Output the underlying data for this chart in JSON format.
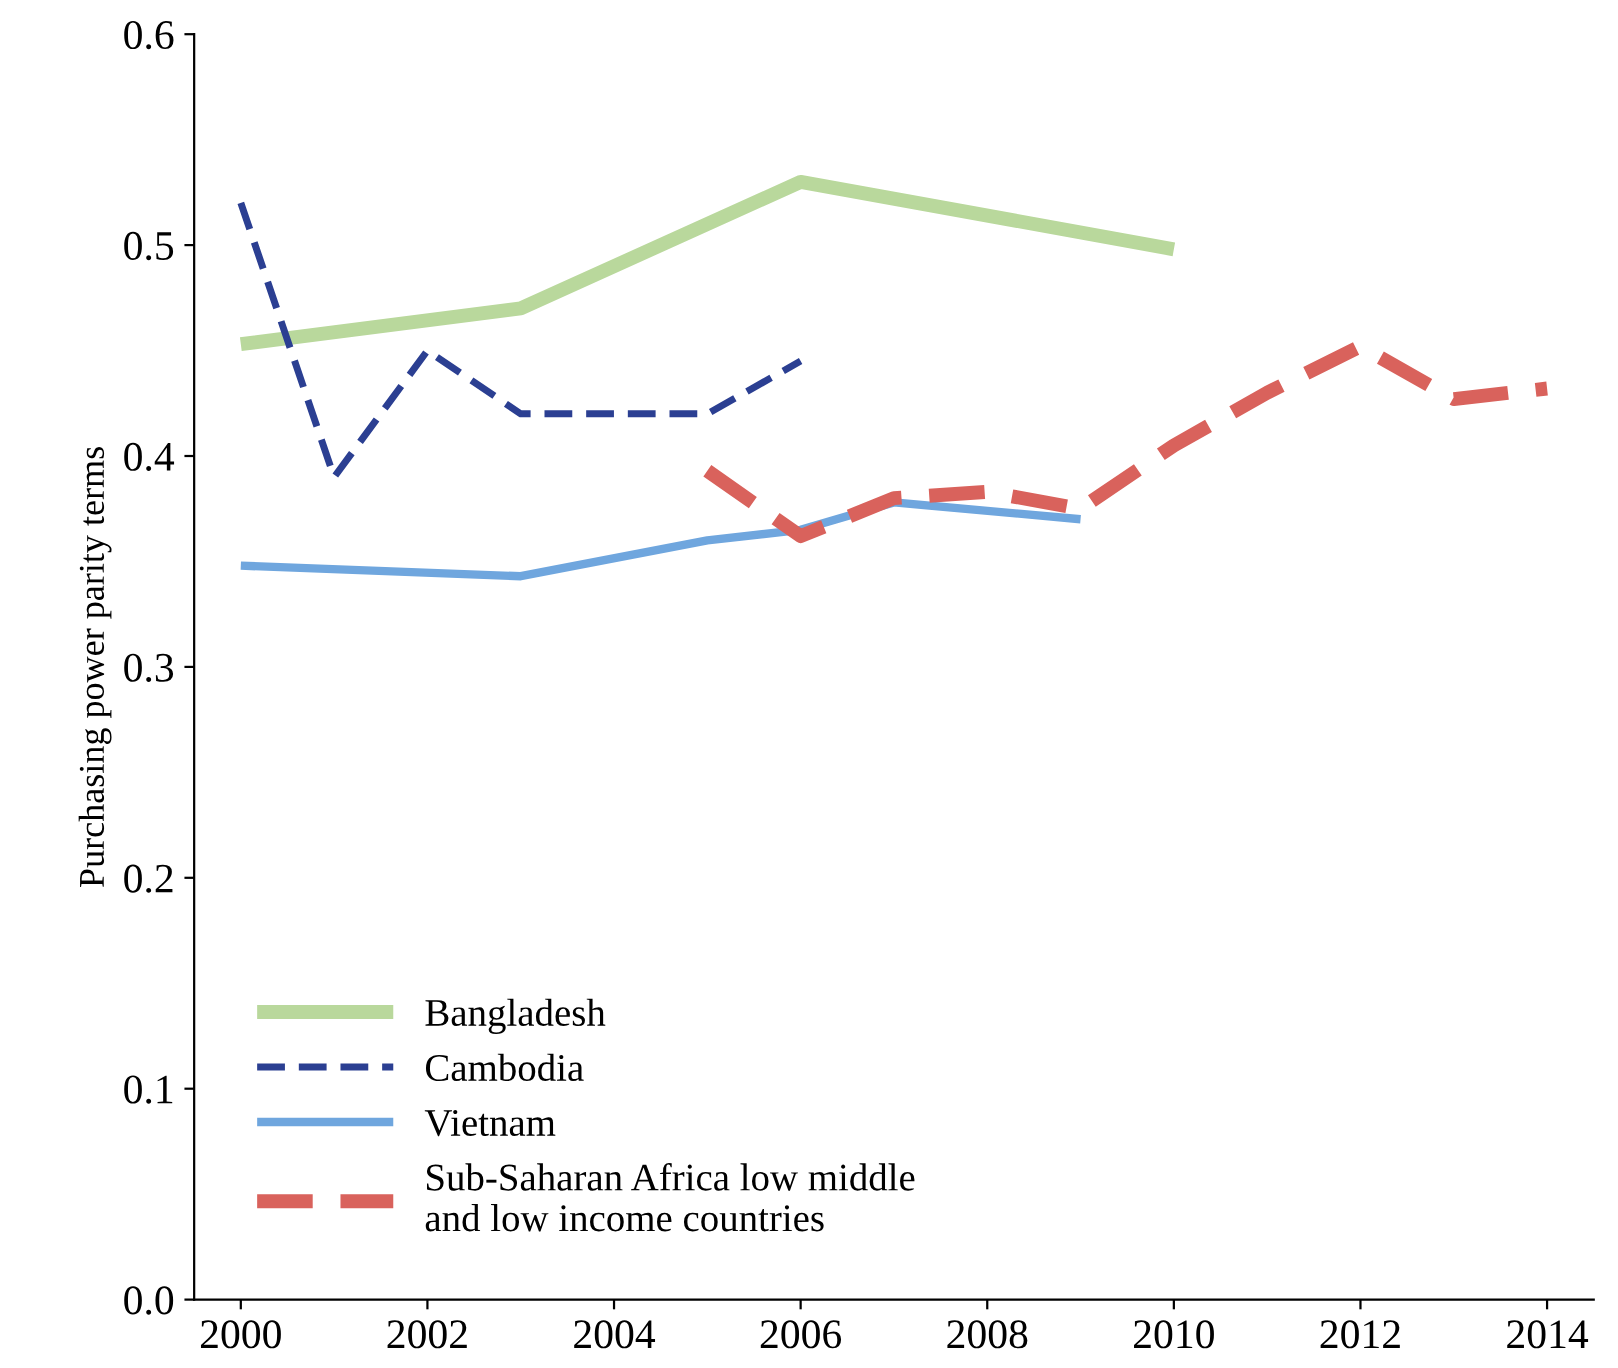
{
  "chart_data": {
    "type": "line",
    "ylabel": "Purchasing power parity terms",
    "xlim": [
      1999.5,
      2014.5
    ],
    "xticks": [
      2000,
      2002,
      2004,
      2006,
      2008,
      2010,
      2012,
      2014
    ],
    "ylim": [
      0,
      0.6
    ],
    "yticks": [
      {
        "value": 0,
        "label": "0.0"
      },
      0.1,
      0.2,
      0.3,
      0.4,
      0.5,
      0.6
    ],
    "grid": false,
    "legend": "bottom left",
    "marker": "none",
    "series": [
      {
        "name": "Bangladesh",
        "color": "#b9d89c",
        "line_style": "solid",
        "x": [
          2000,
          2003,
          2006,
          2010
        ],
        "values": [
          0.453,
          0.47,
          0.53,
          0.498
        ]
      },
      {
        "name": "Cambodia",
        "color": "#2b3f92",
        "line_style": "dashed",
        "x": [
          2000,
          2001,
          2002,
          2003,
          2005,
          2006
        ],
        "values": [
          0.52,
          0.39,
          0.45,
          0.42,
          0.42,
          0.445
        ]
      },
      {
        "name": "Vietnam",
        "color": "#6fa6de",
        "line_style": "solid",
        "x": [
          2000,
          2003,
          2005,
          2006,
          2007,
          2009
        ],
        "values": [
          0.348,
          0.343,
          0.36,
          0.365,
          0.378,
          0.37
        ]
      },
      {
        "name": "Sub-Saharan Africa low middle\nand low income countries",
        "color": "#d9625c",
        "line_style": "dashed",
        "x": [
          2005,
          2006,
          2007,
          2008,
          2009,
          2010,
          2011,
          2012,
          2013,
          2014
        ],
        "values": [
          0.393,
          0.362,
          0.38,
          0.383,
          0.375,
          0.405,
          0.43,
          0.452,
          0.427,
          0.432
        ]
      }
    ]
  }
}
